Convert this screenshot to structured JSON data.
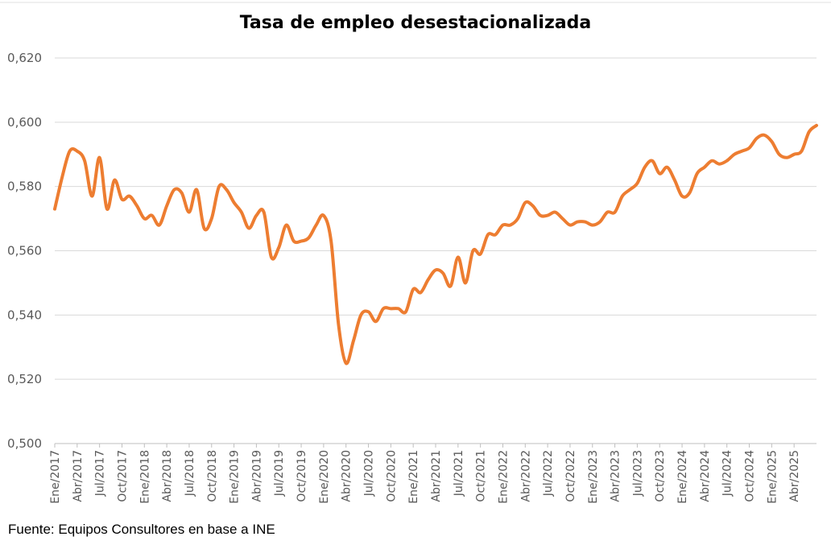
{
  "chart_data": {
    "type": "line",
    "title": "Tasa de empleo desestacionalizada",
    "source": "Fuente: Equipos Consultores en base a INE",
    "xlabel": "",
    "ylabel": "",
    "ylim": [
      0.5,
      0.62
    ],
    "yticks": [
      0.5,
      0.52,
      0.54,
      0.56,
      0.58,
      0.6,
      0.62
    ],
    "ytick_labels": [
      "0,500",
      "0,520",
      "0,540",
      "0,560",
      "0,580",
      "0,600",
      "0,620"
    ],
    "grid": true,
    "legend": "none",
    "line_color": "#ed7d31",
    "xtick_labels": [
      "Ene/2017",
      "Abr/2017",
      "Jul/2017",
      "Oct/2017",
      "Ene/2018",
      "Abr/2018",
      "Jul/2018",
      "Oct/2018",
      "Ene/2019",
      "Abr/2019",
      "Jul/2019",
      "Oct/2019",
      "Ene/2020",
      "Abr/2020",
      "Jul/2020",
      "Oct/2020",
      "Ene/2021",
      "Abr/2021",
      "Jul/2021",
      "Oct/2021",
      "Ene/2022",
      "Abr/2022",
      "Jul/2022",
      "Oct/2022",
      "Ene/2023",
      "Abr/2023",
      "Jul/2023",
      "Oct/2023",
      "Ene/2024",
      "Abr/2024",
      "Jul/2024",
      "Oct/2024",
      "Ene/2025",
      "Abr/2025"
    ],
    "series": [
      {
        "values": [
          0.573,
          0.583,
          0.591,
          0.591,
          0.588,
          0.577,
          0.589,
          0.573,
          0.582,
          0.576,
          0.577,
          0.574,
          0.57,
          0.571,
          0.568,
          0.574,
          0.579,
          0.578,
          0.572,
          0.579,
          0.567,
          0.57,
          0.58,
          0.579,
          0.575,
          0.572,
          0.567,
          0.571,
          0.572,
          0.558,
          0.561,
          0.568,
          0.563,
          0.563,
          0.564,
          0.568,
          0.571,
          0.563,
          0.537,
          0.525,
          0.532,
          0.54,
          0.541,
          0.538,
          0.542,
          0.542,
          0.542,
          0.541,
          0.548,
          0.547,
          0.551,
          0.554,
          0.553,
          0.549,
          0.558,
          0.55,
          0.56,
          0.559,
          0.565,
          0.565,
          0.568,
          0.568,
          0.57,
          0.575,
          0.574,
          0.571,
          0.571,
          0.572,
          0.57,
          0.568,
          0.569,
          0.569,
          0.568,
          0.569,
          0.572,
          0.572,
          0.577,
          0.579,
          0.581,
          0.586,
          0.588,
          0.584,
          0.586,
          0.582,
          0.577,
          0.578,
          0.584,
          0.586,
          0.588,
          0.587,
          0.588,
          0.59,
          0.591,
          0.592,
          0.595,
          0.596,
          0.594,
          0.59,
          0.589,
          0.59,
          0.591,
          0.597,
          0.599
        ]
      }
    ]
  }
}
